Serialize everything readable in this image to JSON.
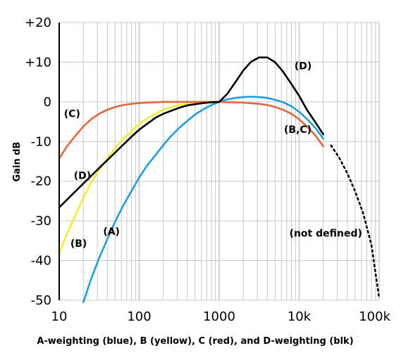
{
  "chart_data": {
    "type": "line",
    "title": "",
    "xlabel": "A-weighting (blue), B (yellow), C (red), and D-weighting (blk)",
    "ylabel": "Gain dB",
    "x_scale": "log",
    "xlim": [
      10,
      100000
    ],
    "ylim": [
      -50,
      20
    ],
    "grid": true,
    "legend": "none",
    "x_ticks": [
      {
        "value": 10,
        "label": "10"
      },
      {
        "value": 100,
        "label": "100"
      },
      {
        "value": 1000,
        "label": "1000"
      },
      {
        "value": 10000,
        "label": "10k"
      },
      {
        "value": 100000,
        "label": "100k"
      }
    ],
    "y_ticks": [
      {
        "value": 20,
        "label": "+20"
      },
      {
        "value": 10,
        "label": "+10"
      },
      {
        "value": 0,
        "label": "0"
      },
      {
        "value": -10,
        "label": "-10"
      },
      {
        "value": -20,
        "label": "-20"
      },
      {
        "value": -30,
        "label": "-30"
      },
      {
        "value": -40,
        "label": "-40"
      },
      {
        "value": -50,
        "label": "-50"
      }
    ],
    "series": [
      {
        "key": "A",
        "color": "#1f9ee0",
        "points": [
          [
            20,
            -50.5
          ],
          [
            25,
            -44.7
          ],
          [
            31.5,
            -39.4
          ],
          [
            40,
            -34.6
          ],
          [
            50,
            -30.2
          ],
          [
            63,
            -26.2
          ],
          [
            80,
            -22.5
          ],
          [
            100,
            -19.1
          ],
          [
            125,
            -16.1
          ],
          [
            160,
            -13.4
          ],
          [
            200,
            -10.9
          ],
          [
            250,
            -8.6
          ],
          [
            315,
            -6.6
          ],
          [
            400,
            -4.8
          ],
          [
            500,
            -3.2
          ],
          [
            630,
            -1.9
          ],
          [
            800,
            -0.8
          ],
          [
            1000,
            0
          ],
          [
            1250,
            0.6
          ],
          [
            1600,
            1.0
          ],
          [
            2000,
            1.2
          ],
          [
            2500,
            1.3
          ],
          [
            3150,
            1.2
          ],
          [
            4000,
            1.0
          ],
          [
            5000,
            0.5
          ],
          [
            6300,
            -0.1
          ],
          [
            8000,
            -1.1
          ],
          [
            10000,
            -2.5
          ],
          [
            12500,
            -4.3
          ],
          [
            16000,
            -6.6
          ],
          [
            20000,
            -9.3
          ]
        ]
      },
      {
        "key": "B",
        "color": "#eeee33",
        "points": [
          [
            10,
            -38.2
          ],
          [
            12.5,
            -33.2
          ],
          [
            16,
            -28.5
          ],
          [
            20,
            -24.2
          ],
          [
            25,
            -20.4
          ],
          [
            31.5,
            -17.1
          ],
          [
            40,
            -14.2
          ],
          [
            50,
            -11.6
          ],
          [
            63,
            -9.3
          ],
          [
            80,
            -7.4
          ],
          [
            100,
            -5.6
          ],
          [
            125,
            -4.2
          ],
          [
            160,
            -3.0
          ],
          [
            200,
            -2.0
          ],
          [
            250,
            -1.3
          ],
          [
            315,
            -0.8
          ],
          [
            400,
            -0.5
          ],
          [
            500,
            -0.3
          ],
          [
            630,
            -0.1
          ],
          [
            800,
            0
          ],
          [
            1000,
            0
          ]
        ]
      },
      {
        "key": "C",
        "color": "#e0673a",
        "points": [
          [
            10,
            -14.3
          ],
          [
            12.5,
            -11.2
          ],
          [
            16,
            -8.5
          ],
          [
            20,
            -6.2
          ],
          [
            25,
            -4.4
          ],
          [
            31.5,
            -3.0
          ],
          [
            40,
            -2.0
          ],
          [
            50,
            -1.3
          ],
          [
            63,
            -0.8
          ],
          [
            80,
            -0.5
          ],
          [
            100,
            -0.3
          ],
          [
            125,
            -0.2
          ],
          [
            160,
            -0.1
          ],
          [
            200,
            0
          ],
          [
            500,
            0
          ],
          [
            1000,
            0
          ],
          [
            2000,
            -0.2
          ],
          [
            3150,
            -0.5
          ],
          [
            4000,
            -0.8
          ],
          [
            5000,
            -1.3
          ],
          [
            6300,
            -2.0
          ],
          [
            8000,
            -3.0
          ],
          [
            10000,
            -4.4
          ],
          [
            12500,
            -6.2
          ],
          [
            16000,
            -8.5
          ],
          [
            20000,
            -11.2
          ]
        ]
      },
      {
        "key": "D",
        "color": "#000000",
        "points": [
          [
            10,
            -26.6
          ],
          [
            20,
            -20.6
          ],
          [
            31.5,
            -16.7
          ],
          [
            50,
            -12.8
          ],
          [
            80,
            -8.8
          ],
          [
            100,
            -7.0
          ],
          [
            160,
            -4.0
          ],
          [
            200,
            -3.0
          ],
          [
            315,
            -1.5
          ],
          [
            400,
            -0.9
          ],
          [
            500,
            -0.6
          ],
          [
            630,
            -0.3
          ],
          [
            800,
            -0.1
          ],
          [
            1000,
            0
          ],
          [
            1250,
            1.9
          ],
          [
            1600,
            5.0
          ],
          [
            2000,
            7.9
          ],
          [
            2500,
            10.1
          ],
          [
            3150,
            11.2
          ],
          [
            4000,
            11.2
          ],
          [
            5000,
            10.0
          ],
          [
            6300,
            7.6
          ],
          [
            8000,
            4.5
          ],
          [
            10000,
            1.5
          ],
          [
            12500,
            -2.0
          ],
          [
            16000,
            -5.2
          ],
          [
            20000,
            -8.2
          ]
        ]
      },
      {
        "key": "undefined-extension",
        "color": "#000000",
        "dashed": true,
        "points": [
          [
            25000,
            -11.0
          ],
          [
            31500,
            -14.0
          ],
          [
            40000,
            -18.0
          ],
          [
            50000,
            -22.5
          ],
          [
            63000,
            -28.0
          ],
          [
            80000,
            -36.0
          ],
          [
            100000,
            -49.5
          ]
        ]
      }
    ],
    "annotations": [
      {
        "text": "(A)",
        "x": 45,
        "y": -33.5
      },
      {
        "text": "(B)",
        "x": 17.5,
        "y": -36.5
      },
      {
        "text": "(C)",
        "x": 14.5,
        "y": -3.8
      },
      {
        "text": "(D)",
        "x": 19.5,
        "y": -19.4
      },
      {
        "text": "(D)",
        "x": 11200,
        "y": 8.2
      },
      {
        "text": "(B,C)",
        "x": 9600,
        "y": -7.8
      },
      {
        "text": "(not defined)",
        "x": 21500,
        "y": -34
      }
    ]
  }
}
